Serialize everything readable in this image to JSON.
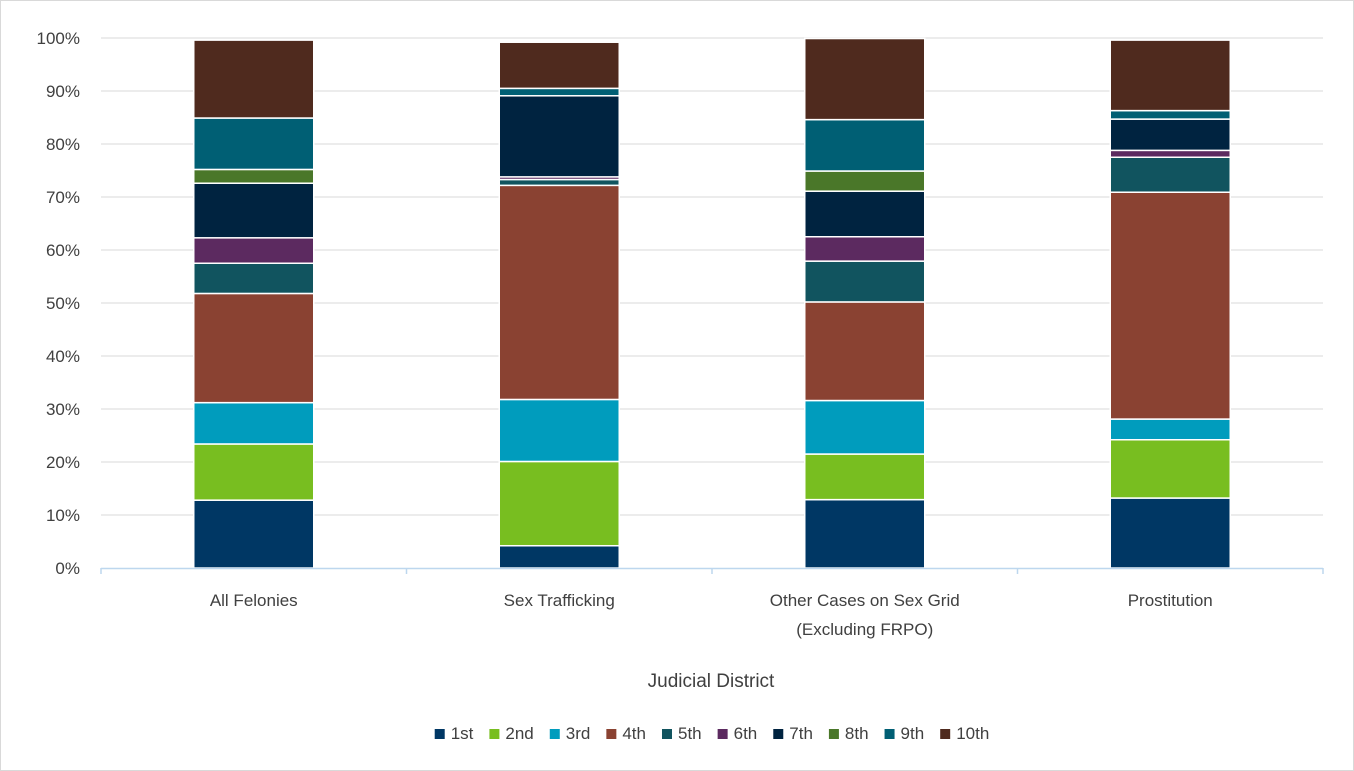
{
  "chart_data": {
    "type": "bar",
    "stacked": true,
    "normalized": true,
    "title": "",
    "xlabel": "Judicial District",
    "ylabel": "",
    "ylim": [
      0,
      100
    ],
    "y_ticks": [
      "0%",
      "10%",
      "20%",
      "30%",
      "40%",
      "50%",
      "60%",
      "70%",
      "80%",
      "90%",
      "100%"
    ],
    "categories": [
      [
        "All Felonies"
      ],
      [
        "Sex Trafficking"
      ],
      [
        "Other Cases on Sex Grid",
        "(Excluding FRPO)"
      ],
      [
        "Prostitution"
      ]
    ],
    "grid": true,
    "legend_position": "bottom",
    "series": [
      {
        "name": "1st",
        "color": "#003764",
        "values": [
          12.8,
          4.2,
          12.9,
          13.2
        ]
      },
      {
        "name": "2nd",
        "color": "#78be20",
        "values": [
          10.6,
          15.9,
          8.6,
          11.0
        ]
      },
      {
        "name": "3rd",
        "color": "#009cbd",
        "values": [
          7.8,
          11.7,
          10.1,
          3.9
        ]
      },
      {
        "name": "4th",
        "color": "#8a4232",
        "values": [
          20.6,
          40.4,
          18.6,
          42.8
        ]
      },
      {
        "name": "5th",
        "color": "#11545f",
        "values": [
          5.7,
          1.1,
          7.7,
          6.6
        ]
      },
      {
        "name": "6th",
        "color": "#5c2a60",
        "values": [
          4.8,
          0.5,
          4.6,
          1.3
        ]
      },
      {
        "name": "7th",
        "color": "#002340",
        "values": [
          10.3,
          15.3,
          8.6,
          5.9
        ]
      },
      {
        "name": "8th",
        "color": "#4a7729",
        "values": [
          2.6,
          0.0,
          3.8,
          0.0
        ]
      },
      {
        "name": "9th",
        "color": "#005f74",
        "values": [
          9.7,
          1.4,
          9.7,
          1.6
        ]
      },
      {
        "name": "10th",
        "color": "#4f2a1e",
        "values": [
          14.7,
          8.7,
          15.3,
          13.3
        ]
      }
    ]
  }
}
